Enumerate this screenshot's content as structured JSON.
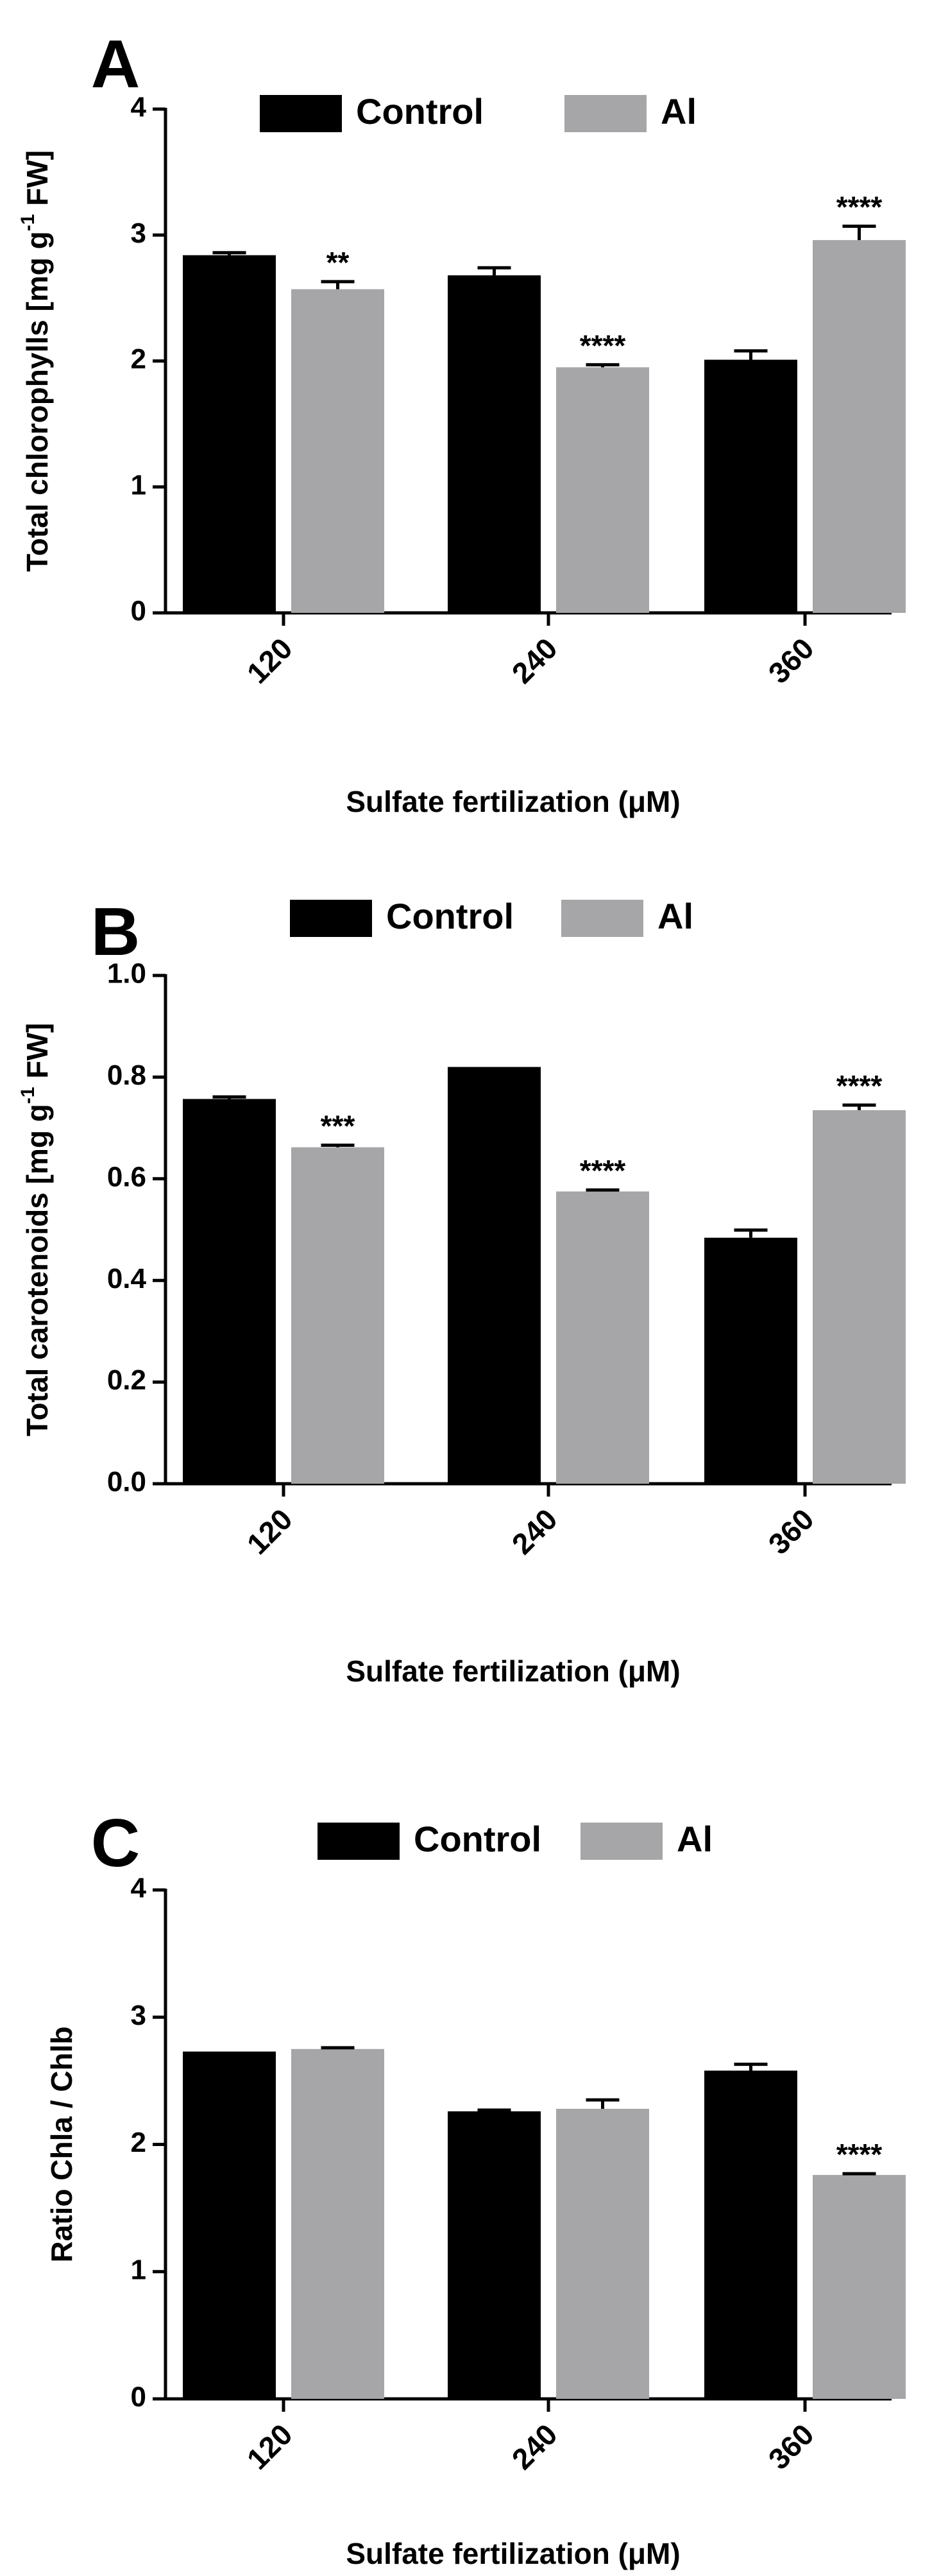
{
  "colors": {
    "control": "#000000",
    "al": "#a6a6a8"
  },
  "chart_data": [
    {
      "panel": "A",
      "type": "bar",
      "categories": [
        "120",
        "240",
        "360"
      ],
      "series": [
        {
          "name": "Control",
          "values": [
            2.84,
            2.68,
            2.01
          ],
          "errors": [
            0.02,
            0.06,
            0.07
          ]
        },
        {
          "name": "Al",
          "values": [
            2.57,
            1.95,
            2.96
          ],
          "errors": [
            0.06,
            0.02,
            0.11
          ]
        }
      ],
      "significance": [
        [
          "",
          ""
        ],
        [
          "",
          ""
        ],
        [
          "",
          ""
        ]
      ],
      "significance_al": [
        "**",
        "****",
        "****"
      ],
      "ylabel_prefix": "Total chlorophylls [mg g",
      "ylabel_sup": "-1",
      "ylabel_suffix": " FW]",
      "xlabel": "Sulfate fertilization  (μM)",
      "ylim": [
        0,
        4
      ],
      "yticks": [
        "0",
        "1",
        "2",
        "3",
        "4"
      ],
      "legend": "top"
    },
    {
      "panel": "B",
      "type": "bar",
      "categories": [
        "120",
        "240",
        "360"
      ],
      "series": [
        {
          "name": "Control",
          "values": [
            0.757,
            0.82,
            0.484
          ],
          "errors": [
            0.004,
            0.0,
            0.015
          ]
        },
        {
          "name": "Al",
          "values": [
            0.662,
            0.575,
            0.735
          ],
          "errors": [
            0.004,
            0.003,
            0.01
          ]
        }
      ],
      "significance_al": [
        "***",
        "****",
        "****"
      ],
      "ylabel_prefix": "Total carotenoids [mg g",
      "ylabel_sup": "-1",
      "ylabel_suffix": " FW]",
      "xlabel": "Sulfate fertilization  (μM)",
      "ylim": [
        0,
        1.0
      ],
      "yticks": [
        "0.0",
        "0.2",
        "0.4",
        "0.6",
        "0.8",
        "1.0"
      ],
      "legend": "top"
    },
    {
      "panel": "C",
      "type": "bar",
      "categories": [
        "120",
        "240",
        "360"
      ],
      "series": [
        {
          "name": "Control",
          "values": [
            2.73,
            2.26,
            2.58
          ],
          "errors": [
            0.0,
            0.01,
            0.05
          ]
        },
        {
          "name": "Al",
          "values": [
            2.75,
            2.28,
            1.76
          ],
          "errors": [
            0.01,
            0.07,
            0.01
          ]
        }
      ],
      "significance_al": [
        "",
        "",
        "****"
      ],
      "ylabel_prefix": "Ratio Chla / Chlb",
      "ylabel_sup": "",
      "ylabel_suffix": "",
      "xlabel": "Sulfate fertilization  (μM)",
      "ylim": [
        0,
        4
      ],
      "yticks": [
        "0",
        "1",
        "2",
        "3",
        "4"
      ],
      "legend": "top"
    }
  ]
}
